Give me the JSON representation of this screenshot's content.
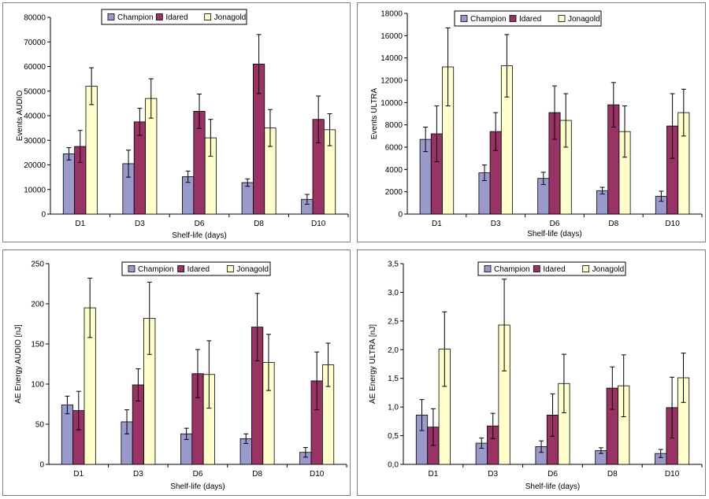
{
  "chart_data": [
    {
      "type": "bar",
      "xlabel": "Shelf-life (days)",
      "ylabel": "Events AUDIO",
      "categories": [
        "D1",
        "D3",
        "D6",
        "D8",
        "D10"
      ],
      "ylim": [
        0,
        80000
      ],
      "yticks": [
        "0",
        "10000",
        "20000",
        "30000",
        "40000",
        "50000",
        "60000",
        "70000",
        "80000"
      ],
      "ytick_values": [
        0,
        10000,
        20000,
        30000,
        40000,
        50000,
        60000,
        70000,
        80000
      ],
      "legend_position": "top-center",
      "grid": false,
      "series": [
        {
          "name": "Champion",
          "color": "#9999CC",
          "values": [
            24500,
            20500,
            15200,
            12800,
            6000
          ],
          "errors": [
            2500,
            5500,
            2300,
            1500,
            2000
          ]
        },
        {
          "name": "Idared",
          "color": "#993366",
          "values": [
            27500,
            37500,
            41800,
            61000,
            38500
          ],
          "errors": [
            6500,
            5500,
            7000,
            12000,
            9500
          ]
        },
        {
          "name": "Jonagold",
          "color": "#FFFFCC",
          "values": [
            52000,
            47000,
            31000,
            35000,
            34300
          ],
          "errors": [
            7500,
            8000,
            7500,
            7500,
            6500
          ]
        }
      ]
    },
    {
      "type": "bar",
      "xlabel": "Shelf-life (days)",
      "ylabel": "Events ULTRA",
      "categories": [
        "D1",
        "D3",
        "D6",
        "D8",
        "D10"
      ],
      "ylim": [
        0,
        18000
      ],
      "yticks": [
        "0",
        "2000",
        "4000",
        "6000",
        "8000",
        "10000",
        "12000",
        "14000",
        "16000",
        "18000"
      ],
      "ytick_values": [
        0,
        2000,
        4000,
        6000,
        8000,
        10000,
        12000,
        14000,
        16000,
        18000
      ],
      "legend_position": "top-center",
      "grid": false,
      "series": [
        {
          "name": "Champion",
          "color": "#9999CC",
          "values": [
            6700,
            3700,
            3200,
            2100,
            1600
          ],
          "errors": [
            1100,
            700,
            550,
            300,
            450
          ]
        },
        {
          "name": "Idared",
          "color": "#993366",
          "values": [
            7200,
            7400,
            9100,
            9800,
            7900
          ],
          "errors": [
            2500,
            1700,
            2400,
            2000,
            2900
          ]
        },
        {
          "name": "Jonagold",
          "color": "#FFFFCC",
          "values": [
            13200,
            13300,
            8400,
            7400,
            9100
          ],
          "errors": [
            3500,
            2800,
            2400,
            2300,
            2100
          ]
        }
      ]
    },
    {
      "type": "bar",
      "xlabel": "Shelf-life (days)",
      "ylabel": "AE Energy AUDIO [nJ]",
      "categories": [
        "D1",
        "D3",
        "D6",
        "D8",
        "D10"
      ],
      "ylim": [
        0,
        250
      ],
      "yticks": [
        "0",
        "50",
        "100",
        "150",
        "200",
        "250"
      ],
      "ytick_values": [
        0,
        50,
        100,
        150,
        200,
        250
      ],
      "legend_position": "top-center",
      "grid": false,
      "series": [
        {
          "name": "Champion",
          "color": "#9999CC",
          "values": [
            74,
            53,
            38,
            32,
            15
          ],
          "errors": [
            11,
            15,
            7,
            6,
            6
          ]
        },
        {
          "name": "Idared",
          "color": "#993366",
          "values": [
            67,
            99,
            113,
            171,
            104
          ],
          "errors": [
            24,
            20,
            30,
            42,
            36
          ]
        },
        {
          "name": "Jonagold",
          "color": "#FFFFCC",
          "values": [
            195,
            182,
            112,
            127,
            124
          ],
          "errors": [
            37,
            45,
            42,
            35,
            27
          ]
        }
      ]
    },
    {
      "type": "bar",
      "xlabel": "Shelf-life (days)",
      "ylabel": "AE Energy ULTRA [nJ]",
      "categories": [
        "D1",
        "D3",
        "D6",
        "D8",
        "D10"
      ],
      "ylim": [
        0,
        3.5
      ],
      "yticks": [
        "0,0",
        "0,5",
        "1,0",
        "1,5",
        "2,0",
        "2,5",
        "3,0",
        "3,5"
      ],
      "ytick_values": [
        0,
        0.5,
        1.0,
        1.5,
        2.0,
        2.5,
        3.0,
        3.5
      ],
      "legend_position": "top-center",
      "grid": false,
      "series": [
        {
          "name": "Champion",
          "color": "#9999CC",
          "values": [
            0.86,
            0.37,
            0.31,
            0.24,
            0.19
          ],
          "errors": [
            0.27,
            0.09,
            0.1,
            0.05,
            0.07
          ]
        },
        {
          "name": "Idared",
          "color": "#993366",
          "values": [
            0.65,
            0.67,
            0.86,
            1.33,
            0.99
          ],
          "errors": [
            0.32,
            0.22,
            0.37,
            0.37,
            0.53
          ]
        },
        {
          "name": "Jonagold",
          "color": "#FFFFCC",
          "values": [
            2.01,
            2.43,
            1.41,
            1.37,
            1.51
          ],
          "errors": [
            0.65,
            0.8,
            0.51,
            0.54,
            0.43
          ]
        }
      ]
    }
  ]
}
